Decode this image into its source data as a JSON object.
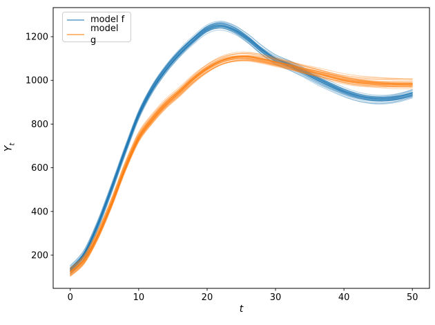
{
  "chart_data": {
    "type": "line",
    "title": "",
    "xlabel": "t",
    "ylabel_base": "Y",
    "ylabel_sub": "t",
    "xlim": [
      -2.5,
      52.5
    ],
    "ylim": [
      48,
      1333
    ],
    "xticks": [
      0,
      10,
      20,
      30,
      40,
      50
    ],
    "yticks": [
      200,
      400,
      600,
      800,
      1000,
      1200
    ],
    "grid": false,
    "legend": {
      "position": "upper left",
      "entries": [
        "model f",
        "model g"
      ]
    },
    "ensemble": {
      "lines_per_series": 30,
      "offset_spread": 25,
      "wiggle": 9,
      "line_alpha": 0.35,
      "line_width": 1.1
    },
    "x": [
      0,
      2,
      4,
      6,
      8,
      10,
      12,
      14,
      16,
      18,
      20,
      22,
      24,
      26,
      28,
      30,
      32,
      34,
      36,
      38,
      40,
      42,
      44,
      46,
      48,
      50
    ],
    "series": [
      {
        "name": "model f",
        "color": "#1f77b4",
        "values": [
          135,
          205,
          340,
          505,
          680,
          845,
          965,
          1055,
          1128,
          1188,
          1238,
          1254,
          1234,
          1192,
          1140,
          1098,
          1072,
          1042,
          1008,
          978,
          950,
          929,
          917,
          915,
          923,
          940
        ]
      },
      {
        "name": "model g",
        "color": "#ff7f0e",
        "values": [
          122,
          178,
          290,
          435,
          600,
          740,
          825,
          895,
          950,
          1008,
          1055,
          1088,
          1104,
          1106,
          1096,
          1082,
          1068,
          1052,
          1038,
          1022,
          1007,
          997,
          991,
          987,
          985,
          984
        ]
      }
    ]
  }
}
